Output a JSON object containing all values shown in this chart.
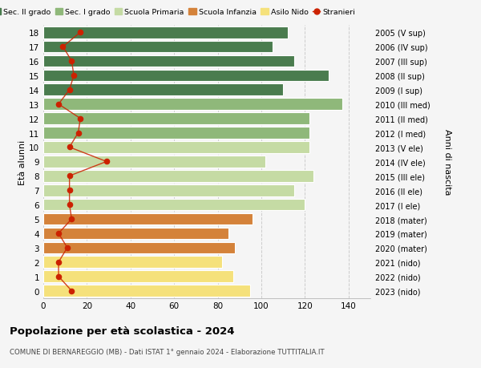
{
  "ages": [
    0,
    1,
    2,
    3,
    4,
    5,
    6,
    7,
    8,
    9,
    10,
    11,
    12,
    13,
    14,
    15,
    16,
    17,
    18
  ],
  "years": [
    "2023 (nido)",
    "2022 (nido)",
    "2021 (nido)",
    "2020 (mater)",
    "2019 (mater)",
    "2018 (mater)",
    "2017 (I ele)",
    "2016 (II ele)",
    "2015 (III ele)",
    "2014 (IV ele)",
    "2013 (V ele)",
    "2012 (I med)",
    "2011 (II med)",
    "2010 (III med)",
    "2009 (I sup)",
    "2008 (II sup)",
    "2007 (III sup)",
    "2006 (IV sup)",
    "2005 (V sup)"
  ],
  "bar_values": [
    95,
    87,
    82,
    88,
    85,
    96,
    120,
    115,
    124,
    102,
    122,
    122,
    122,
    137,
    110,
    131,
    115,
    105,
    112
  ],
  "bar_colors": [
    "#f5e17b",
    "#f5e17b",
    "#f5e17b",
    "#d4823a",
    "#d4823a",
    "#d4823a",
    "#c5dba4",
    "#c5dba4",
    "#c5dba4",
    "#c5dba4",
    "#c5dba4",
    "#8fb87a",
    "#8fb87a",
    "#8fb87a",
    "#4a7c4e",
    "#4a7c4e",
    "#4a7c4e",
    "#4a7c4e",
    "#4a7c4e"
  ],
  "stranieri": [
    13,
    7,
    7,
    11,
    7,
    13,
    12,
    12,
    12,
    29,
    12,
    16,
    17,
    7,
    12,
    14,
    13,
    9,
    17
  ],
  "legend_labels": [
    "Sec. II grado",
    "Sec. I grado",
    "Scuola Primaria",
    "Scuola Infanzia",
    "Asilo Nido",
    "Stranieri"
  ],
  "legend_colors": [
    "#4a7c4e",
    "#8fb87a",
    "#c5dba4",
    "#d4823a",
    "#f5e17b",
    "#cc2200"
  ],
  "title": "Popolazione per età scolastica - 2024",
  "subtitle": "COMUNE DI BERNAREGGIO (MB) - Dati ISTAT 1° gennaio 2024 - Elaborazione TUTTITALIA.IT",
  "ylabel_left": "Età alunni",
  "ylabel_right": "Anni di nascita",
  "xlim": [
    0,
    150
  ],
  "bg_color": "#f5f5f5",
  "grid_color": "#cccccc",
  "bar_height": 0.82
}
